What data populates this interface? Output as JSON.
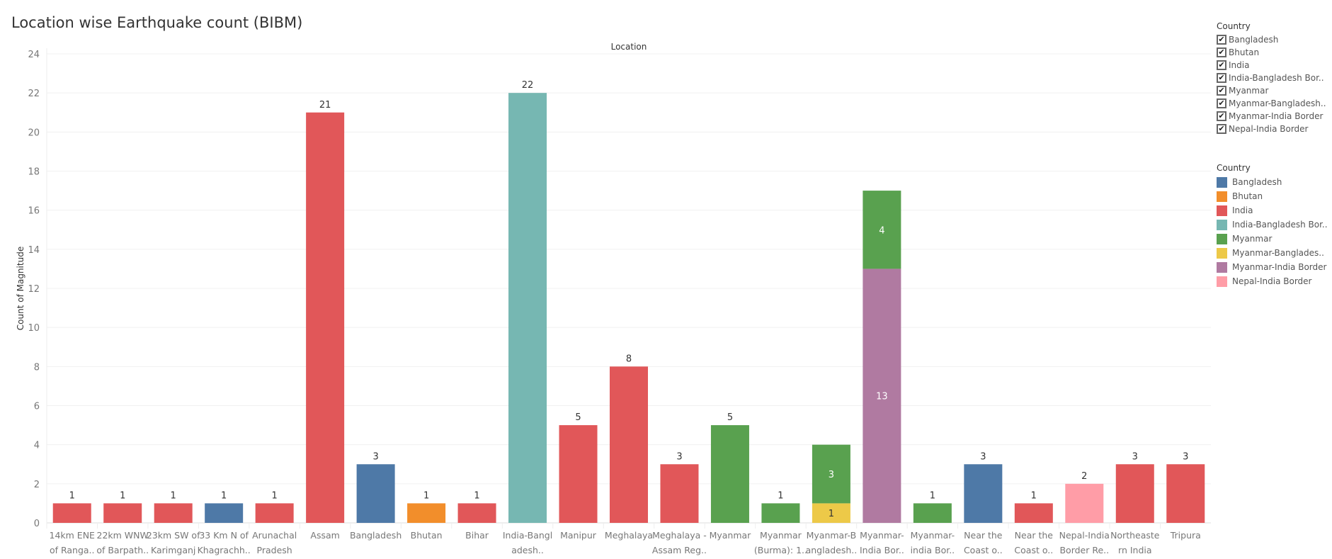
{
  "chart_data": {
    "type": "bar",
    "stacked": true,
    "title": "Location wise Earthquake count (BIBM)",
    "column_header": "Location",
    "ylabel": "Count of Magnitude",
    "ylim": [
      0,
      24
    ],
    "yticks": [
      0,
      2,
      4,
      6,
      8,
      10,
      12,
      14,
      16,
      18,
      20,
      22,
      24
    ],
    "grid": true,
    "categories": [
      [
        "14km ENE",
        "of Ranga.."
      ],
      [
        "22km WNW",
        "of Barpath.."
      ],
      [
        "23km SW of",
        "Karimganj"
      ],
      [
        "33 Km N of",
        "Khagrachh.."
      ],
      [
        "Arunachal",
        "Pradesh"
      ],
      [
        "Assam"
      ],
      [
        "Bangladesh"
      ],
      [
        "Bhutan"
      ],
      [
        "Bihar"
      ],
      [
        "India-Bangl",
        "adesh.."
      ],
      [
        "Manipur"
      ],
      [
        "Meghalaya"
      ],
      [
        "Meghalaya -",
        "Assam Reg.."
      ],
      [
        "Myanmar"
      ],
      [
        "Myanmar",
        "(Burma): 1.."
      ],
      [
        "Myanmar-B",
        "angladesh.."
      ],
      [
        "Myanmar-",
        "India Bor.."
      ],
      [
        "Myanmar-",
        "india Bor.."
      ],
      [
        "Near the",
        "Coast o.."
      ],
      [
        "Near the",
        "Coast o.."
      ],
      [
        "Nepal-India",
        "Border Re.."
      ],
      [
        "Northeaste",
        "rn India"
      ],
      [
        "Tripura"
      ]
    ],
    "bars": [
      [
        {
          "country": "India",
          "value": 1
        }
      ],
      [
        {
          "country": "India",
          "value": 1
        }
      ],
      [
        {
          "country": "India",
          "value": 1
        }
      ],
      [
        {
          "country": "Bangladesh",
          "value": 1
        }
      ],
      [
        {
          "country": "India",
          "value": 1
        }
      ],
      [
        {
          "country": "India",
          "value": 21
        }
      ],
      [
        {
          "country": "Bangladesh",
          "value": 3
        }
      ],
      [
        {
          "country": "Bhutan",
          "value": 1
        }
      ],
      [
        {
          "country": "India",
          "value": 1
        }
      ],
      [
        {
          "country": "India-Bangladesh Border",
          "value": 22
        }
      ],
      [
        {
          "country": "India",
          "value": 5
        }
      ],
      [
        {
          "country": "India",
          "value": 8
        }
      ],
      [
        {
          "country": "India",
          "value": 3
        }
      ],
      [
        {
          "country": "Myanmar",
          "value": 5
        }
      ],
      [
        {
          "country": "Myanmar",
          "value": 1
        }
      ],
      [
        {
          "country": "Myanmar-Bangladesh",
          "value": 1
        },
        {
          "country": "Myanmar",
          "value": 3
        }
      ],
      [
        {
          "country": "Myanmar-India Border",
          "value": 13
        },
        {
          "country": "Myanmar",
          "value": 4
        }
      ],
      [
        {
          "country": "Myanmar",
          "value": 1
        }
      ],
      [
        {
          "country": "Bangladesh",
          "value": 3
        }
      ],
      [
        {
          "country": "India",
          "value": 1
        }
      ],
      [
        {
          "country": "Nepal-India Border",
          "value": 2
        }
      ],
      [
        {
          "country": "India",
          "value": 3
        }
      ],
      [
        {
          "country": "India",
          "value": 3
        }
      ]
    ],
    "colors": {
      "Bangladesh": "#4e79a7",
      "Bhutan": "#f28e2b",
      "India": "#e15759",
      "India-Bangladesh Border": "#76b7b2",
      "Myanmar": "#59a14f",
      "Myanmar-Bangladesh": "#edc948",
      "Myanmar-India Border": "#b07aa1",
      "Nepal-India Border": "#ff9da7"
    }
  },
  "filter_legend": {
    "title": "Country",
    "items": [
      "Bangladesh",
      "Bhutan",
      "India",
      "India-Bangladesh Bor..",
      "Myanmar",
      "Myanmar-Bangladesh..",
      "Myanmar-India Border",
      "Nepal-India Border"
    ],
    "checked": [
      true,
      true,
      true,
      true,
      true,
      true,
      true,
      true
    ]
  },
  "color_legend": {
    "title": "Country",
    "items": [
      {
        "label": "Bangladesh",
        "color": "#4e79a7"
      },
      {
        "label": "Bhutan",
        "color": "#f28e2b"
      },
      {
        "label": "India",
        "color": "#e15759"
      },
      {
        "label": "India-Bangladesh Bor..",
        "color": "#76b7b2"
      },
      {
        "label": "Myanmar",
        "color": "#59a14f"
      },
      {
        "label": "Myanmar-Banglades..",
        "color": "#edc948"
      },
      {
        "label": "Myanmar-India Border",
        "color": "#b07aa1"
      },
      {
        "label": "Nepal-India Border",
        "color": "#ff9da7"
      }
    ]
  }
}
